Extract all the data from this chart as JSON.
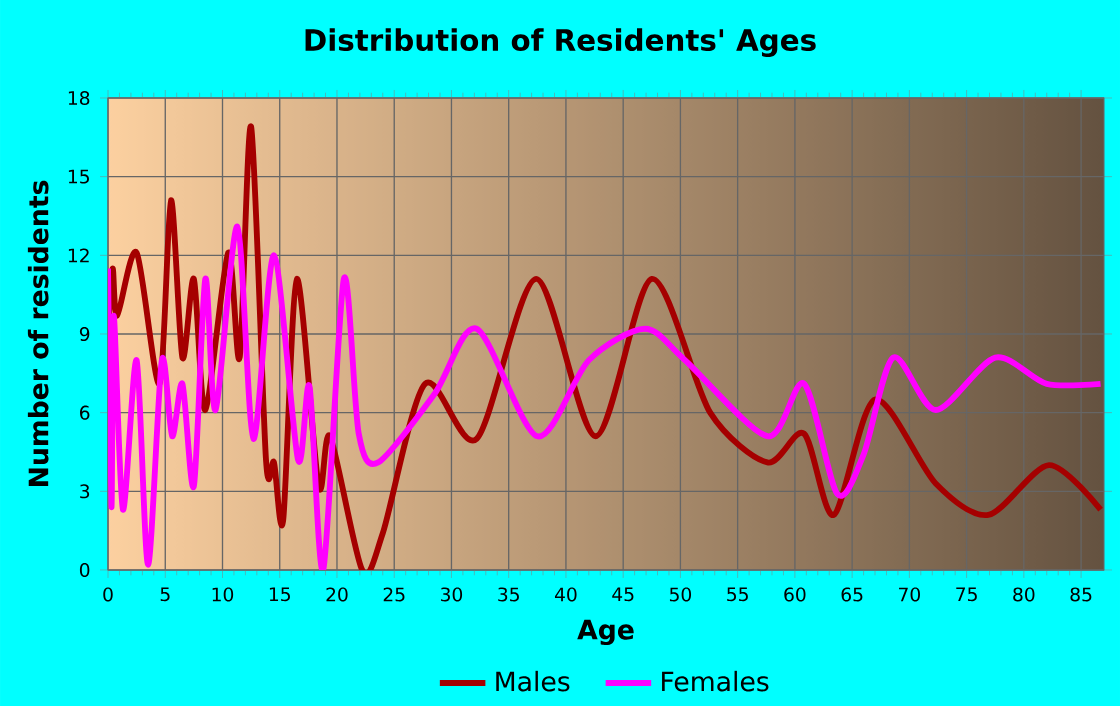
{
  "chart_data": {
    "type": "line",
    "title": "Distribution of Residents' Ages",
    "xlabel": "Age",
    "ylabel": "Number of residents",
    "xlim": [
      0,
      87
    ],
    "ylim": [
      0,
      18
    ],
    "xticks": [
      0,
      5,
      10,
      15,
      20,
      25,
      30,
      35,
      40,
      45,
      50,
      55,
      60,
      65,
      70,
      75,
      80,
      85
    ],
    "yticks": [
      0,
      3,
      6,
      9,
      12,
      15,
      18
    ],
    "grid": true,
    "legend": "bottom",
    "marker": "none",
    "line_style": "solid",
    "series": [
      {
        "name": "Males",
        "color": "#a50000",
        "x": [
          0,
          0.4,
          0.8,
          2.5,
          4.5,
          5.5,
          6.5,
          7.5,
          8.5,
          10.5,
          11.5,
          12.5,
          13.8,
          14.5,
          15.3,
          16.5,
          18.4,
          19.4,
          22.2,
          24,
          27.7,
          32.2,
          37.4,
          42.6,
          47.5,
          52.6,
          57.6,
          60.8,
          63.4,
          67,
          72.3,
          76.9,
          82.2,
          86.7
        ],
        "values": [
          9,
          11.5,
          9.7,
          12.1,
          7.1,
          14.1,
          8.1,
          11.1,
          6.1,
          12.1,
          8.1,
          16.9,
          4.2,
          4.1,
          1.9,
          11.1,
          3.2,
          5.1,
          0,
          1.4,
          7.1,
          5,
          11.1,
          5.1,
          11.1,
          6,
          4.1,
          5.2,
          2.1,
          6.5,
          3.3,
          2.1,
          4,
          2.3
        ]
      },
      {
        "name": "Females",
        "color": "#ff00ff",
        "x": [
          0,
          0.3,
          0.5,
          1.3,
          2.5,
          3.5,
          4.7,
          5.6,
          6.5,
          7.5,
          8.5,
          9.4,
          11.3,
          12.7,
          14.5,
          16.6,
          17.6,
          18.8,
          20.6,
          21.9,
          23.6,
          28.5,
          32.2,
          37.5,
          42,
          46.9,
          50.4,
          57.6,
          60.8,
          63.7,
          66,
          68.6,
          72.3,
          77.5,
          82,
          86.7
        ],
        "values": [
          11.5,
          2.4,
          9.7,
          2.3,
          8,
          0.2,
          8,
          5.1,
          7.1,
          3.2,
          11.1,
          6.1,
          13.1,
          5,
          12,
          4.2,
          7,
          0,
          11.1,
          5.2,
          4.1,
          6.7,
          9.2,
          5.1,
          8,
          9.2,
          8,
          5.1,
          7.1,
          2.9,
          4.4,
          8.1,
          6.1,
          8.1,
          7.1,
          7.1
        ]
      }
    ]
  }
}
